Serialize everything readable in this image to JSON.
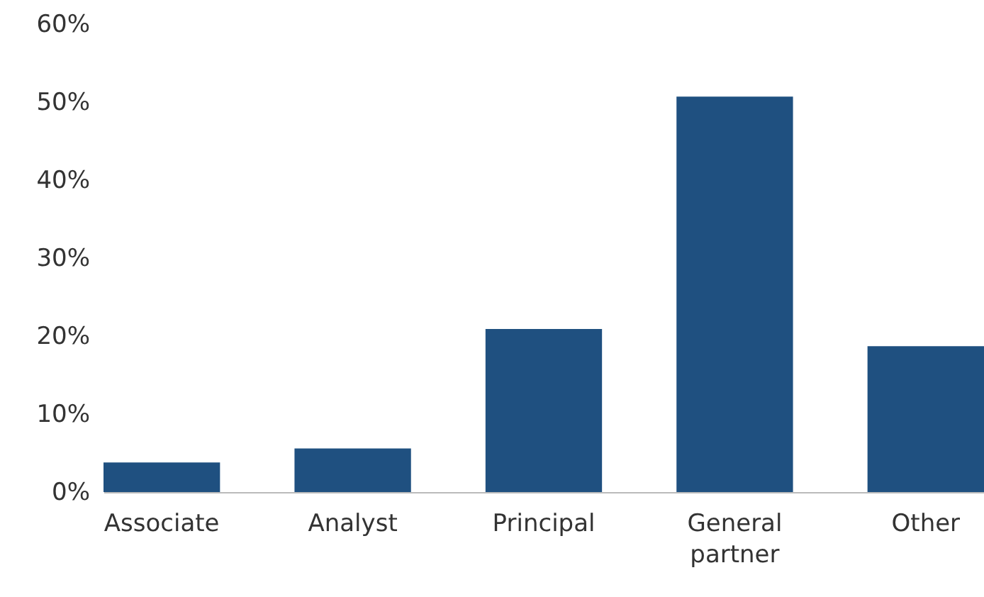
{
  "chart_data": {
    "type": "bar",
    "categories": [
      "Associate",
      "Analyst",
      "Principal",
      "General partner",
      "Other"
    ],
    "values": [
      3.8,
      5.6,
      20.9,
      50.7,
      18.7
    ],
    "color": "#1f5080",
    "ylim": [
      0,
      60
    ],
    "yticks": [
      {
        "value": 0,
        "label": "0%"
      },
      {
        "value": 10,
        "label": "10%"
      },
      {
        "value": 20,
        "label": "20%"
      },
      {
        "value": 30,
        "label": "30%"
      },
      {
        "value": 40,
        "label": "40%"
      },
      {
        "value": 50,
        "label": "50%"
      },
      {
        "value": 60,
        "label": "60%"
      }
    ],
    "grid": false
  }
}
